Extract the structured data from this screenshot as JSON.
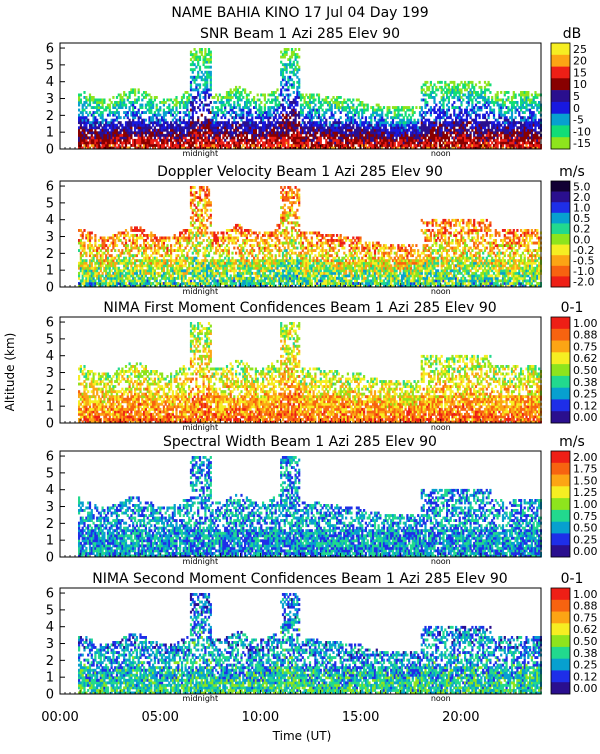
{
  "figure": {
    "title": "NAME BAHIA KINO   17 Jul 04 Day 199",
    "ylabel": "Altitude (km)",
    "xlabel": "Time (UT)",
    "xticks": [
      "00:00",
      "05:00",
      "10:00",
      "15:00",
      "20:00"
    ],
    "xtick_hours": [
      0,
      5,
      10,
      15,
      20
    ],
    "markers": [
      {
        "label": "midnight",
        "hour": 7.0
      },
      {
        "label": "noon",
        "hour": 19.0
      }
    ],
    "xlim": [
      0,
      24
    ],
    "ylim": [
      0,
      6.3
    ],
    "yticks": [
      "0",
      "1",
      "2",
      "3",
      "4",
      "5",
      "6"
    ]
  },
  "chart_data": [
    {
      "type": "heatmap",
      "title": "SNR Beam 1 Azi 285 Elev 90",
      "unit": "dB",
      "scale": [
        "25",
        "20",
        "15",
        "10",
        "5",
        "0",
        "-5",
        "-10",
        "-15"
      ],
      "colors": [
        "#f6ee22",
        "#fca514",
        "#ee1f16",
        "#880000",
        "#2a0f8e",
        "#1818e0",
        "#07a0cf",
        "#11dd77",
        "#8ee41d"
      ],
      "xlim": [
        0,
        24
      ],
      "ylim": [
        0,
        6.3
      ]
    },
    {
      "type": "heatmap",
      "title": "Doppler Velocity Beam 1 Azi 285 Elev 90",
      "unit": "m/s",
      "scale": [
        "5.0",
        "2.0",
        "1.0",
        "0.5",
        "0.2",
        "0.0",
        "-0.2",
        "-0.5",
        "-1.0",
        "-2.0"
      ],
      "colors": [
        "#120033",
        "#2a0f8e",
        "#1e2ee8",
        "#07a0cf",
        "#22d98e",
        "#8ee41d",
        "#f6ee22",
        "#fca514",
        "#f76310",
        "#ee1f16"
      ],
      "xlim": [
        0,
        24
      ],
      "ylim": [
        0,
        6.3
      ]
    },
    {
      "type": "heatmap",
      "title": "NIMA First Moment Confidences Beam 1 Azi 285 Elev 90",
      "unit": "0-1",
      "scale": [
        "1.00",
        "0.88",
        "0.75",
        "0.62",
        "0.50",
        "0.38",
        "0.25",
        "0.12",
        "0.00"
      ],
      "colors": [
        "#ee1f16",
        "#f76310",
        "#fca514",
        "#f6ee22",
        "#8ee41d",
        "#22d98e",
        "#07a0cf",
        "#1e2ee8",
        "#2a0f8e"
      ],
      "xlim": [
        0,
        24
      ],
      "ylim": [
        0,
        6.3
      ]
    },
    {
      "type": "heatmap",
      "title": "Spectral Width Beam 1 Azi 285 Elev 90",
      "unit": "m/s",
      "scale": [
        "2.00",
        "1.75",
        "1.50",
        "1.25",
        "1.00",
        "0.75",
        "0.50",
        "0.25",
        "0.00"
      ],
      "colors": [
        "#ee1f16",
        "#f76310",
        "#fca514",
        "#f6ee22",
        "#8ee41d",
        "#22d98e",
        "#07a0cf",
        "#1e2ee8",
        "#2a0f8e"
      ],
      "xlim": [
        0,
        24
      ],
      "ylim": [
        0,
        6.3
      ]
    },
    {
      "type": "heatmap",
      "title": "NIMA Second Moment Confidences Beam 1 Azi 285 Elev 90",
      "unit": "0-1",
      "scale": [
        "1.00",
        "0.88",
        "0.75",
        "0.62",
        "0.50",
        "0.38",
        "0.25",
        "0.12",
        "0.00"
      ],
      "colors": [
        "#ee1f16",
        "#f76310",
        "#fca514",
        "#f6ee22",
        "#8ee41d",
        "#22d98e",
        "#07a0cf",
        "#1e2ee8",
        "#2a0f8e"
      ],
      "xlim": [
        0,
        24
      ],
      "ylim": [
        0,
        6.3
      ]
    }
  ]
}
